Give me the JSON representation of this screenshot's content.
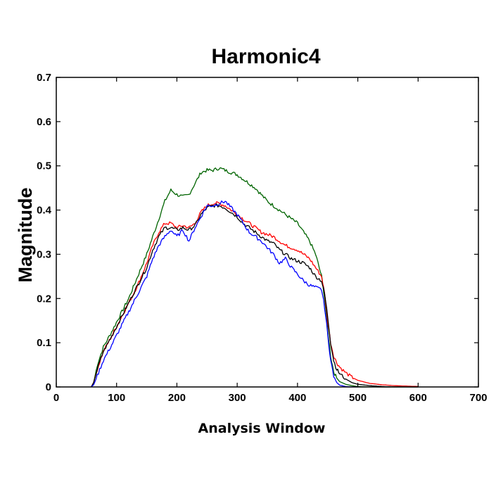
{
  "chart_data": {
    "type": "line",
    "title": "Harmonic4",
    "xlabel": "Analysis Window",
    "ylabel": "Magnitude",
    "xlim": [
      0,
      700
    ],
    "ylim": [
      0,
      0.7
    ],
    "x_ticks": [
      "0",
      "100",
      "200",
      "300",
      "400",
      "500",
      "600",
      "700"
    ],
    "y_ticks": [
      "0",
      "0.1",
      "0.2",
      "0.3",
      "0.4",
      "0.5",
      "0.6",
      "0.7"
    ],
    "grid": false,
    "legend": "none",
    "series": [
      {
        "color": "#006400",
        "x": [
          58,
          62,
          68,
          78,
          90,
          105,
          120,
          135,
          150,
          160,
          170,
          180,
          190,
          200,
          210,
          220,
          230,
          240,
          250,
          260,
          270,
          280,
          290,
          300,
          310,
          320,
          330,
          340,
          350,
          360,
          370,
          380,
          390,
          400,
          410,
          420,
          430,
          440,
          445,
          450,
          455,
          460,
          465,
          470,
          480,
          490,
          500,
          520,
          540,
          560,
          580,
          600
        ],
        "y": [
          0.0,
          0.01,
          0.05,
          0.09,
          0.12,
          0.16,
          0.2,
          0.25,
          0.3,
          0.34,
          0.38,
          0.42,
          0.445,
          0.435,
          0.43,
          0.435,
          0.46,
          0.485,
          0.49,
          0.49,
          0.495,
          0.49,
          0.485,
          0.48,
          0.47,
          0.46,
          0.45,
          0.435,
          0.42,
          0.41,
          0.4,
          0.39,
          0.38,
          0.37,
          0.35,
          0.33,
          0.3,
          0.25,
          0.2,
          0.13,
          0.07,
          0.035,
          0.02,
          0.012,
          0.006,
          0.003,
          0.001,
          0.0,
          0.0,
          0.0,
          0.0,
          0.0
        ]
      },
      {
        "color": "#ff0000",
        "x": [
          58,
          62,
          68,
          78,
          90,
          105,
          120,
          135,
          150,
          160,
          170,
          180,
          190,
          200,
          210,
          220,
          230,
          240,
          250,
          260,
          270,
          280,
          290,
          300,
          310,
          320,
          330,
          340,
          350,
          360,
          370,
          380,
          390,
          400,
          410,
          420,
          430,
          440,
          445,
          450,
          455,
          460,
          465,
          470,
          480,
          490,
          500,
          520,
          540,
          560,
          580,
          600
        ],
        "y": [
          0.0,
          0.01,
          0.04,
          0.08,
          0.11,
          0.15,
          0.19,
          0.23,
          0.28,
          0.32,
          0.35,
          0.37,
          0.37,
          0.36,
          0.365,
          0.36,
          0.37,
          0.395,
          0.41,
          0.415,
          0.415,
          0.41,
          0.4,
          0.39,
          0.38,
          0.37,
          0.36,
          0.35,
          0.345,
          0.34,
          0.33,
          0.32,
          0.315,
          0.31,
          0.3,
          0.29,
          0.27,
          0.25,
          0.21,
          0.15,
          0.1,
          0.07,
          0.055,
          0.045,
          0.032,
          0.022,
          0.015,
          0.008,
          0.005,
          0.003,
          0.002,
          0.001
        ]
      },
      {
        "color": "#000000",
        "x": [
          58,
          62,
          68,
          78,
          90,
          105,
          120,
          135,
          150,
          160,
          170,
          180,
          190,
          200,
          210,
          220,
          230,
          240,
          250,
          260,
          270,
          280,
          290,
          300,
          310,
          320,
          330,
          340,
          350,
          360,
          370,
          380,
          390,
          400,
          410,
          420,
          430,
          440,
          445,
          450,
          455,
          460,
          465,
          470,
          480,
          490,
          500,
          520,
          540,
          560,
          580,
          600
        ],
        "y": [
          0.0,
          0.01,
          0.04,
          0.08,
          0.11,
          0.15,
          0.19,
          0.23,
          0.27,
          0.31,
          0.34,
          0.36,
          0.36,
          0.355,
          0.36,
          0.355,
          0.365,
          0.39,
          0.405,
          0.41,
          0.41,
          0.405,
          0.395,
          0.385,
          0.37,
          0.36,
          0.35,
          0.34,
          0.33,
          0.325,
          0.31,
          0.3,
          0.29,
          0.285,
          0.28,
          0.27,
          0.25,
          0.24,
          0.21,
          0.16,
          0.1,
          0.06,
          0.04,
          0.03,
          0.018,
          0.01,
          0.006,
          0.003,
          0.001,
          0.0,
          0.0,
          0.0
        ]
      },
      {
        "color": "#0000ff",
        "x": [
          58,
          62,
          68,
          78,
          90,
          105,
          120,
          135,
          150,
          160,
          170,
          180,
          190,
          200,
          210,
          220,
          230,
          240,
          250,
          260,
          270,
          280,
          290,
          300,
          310,
          320,
          330,
          340,
          350,
          360,
          370,
          380,
          390,
          400,
          410,
          420,
          430,
          440,
          445,
          450,
          455,
          460,
          465,
          470,
          480,
          490,
          500
        ],
        "y": [
          0.0,
          0.005,
          0.025,
          0.06,
          0.09,
          0.13,
          0.17,
          0.21,
          0.25,
          0.29,
          0.32,
          0.34,
          0.355,
          0.34,
          0.355,
          0.33,
          0.36,
          0.385,
          0.41,
          0.41,
          0.415,
          0.42,
          0.405,
          0.39,
          0.37,
          0.35,
          0.34,
          0.33,
          0.315,
          0.3,
          0.28,
          0.29,
          0.27,
          0.255,
          0.24,
          0.23,
          0.225,
          0.22,
          0.18,
          0.12,
          0.06,
          0.025,
          0.01,
          0.004,
          0.001,
          0.0,
          0.0
        ]
      }
    ]
  }
}
